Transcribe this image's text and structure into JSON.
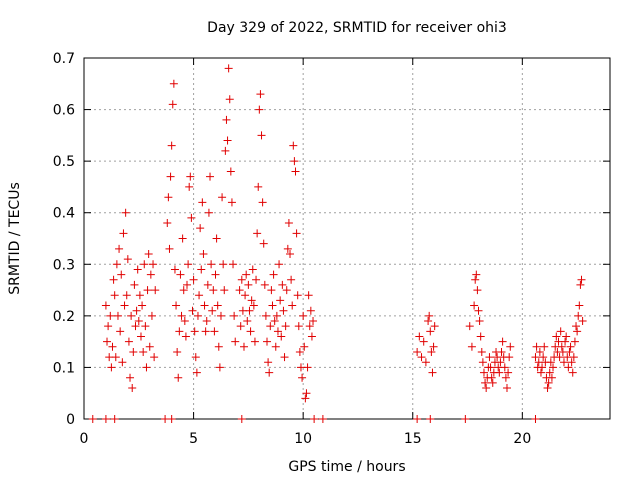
{
  "chart_data": {
    "type": "scatter",
    "title": "Day 329 of 2022, SRMTID for receiver ohi3",
    "xlabel": "GPS time / hours",
    "ylabel": "SRMTID / TECUs",
    "xlim": [
      0,
      24
    ],
    "ylim": [
      0,
      0.7
    ],
    "xticks": [
      0,
      5,
      10,
      15,
      20
    ],
    "xtick_labels": [
      "0",
      "5",
      "10",
      "15",
      "20"
    ],
    "yticks": [
      0,
      0.1,
      0.2,
      0.3,
      0.4,
      0.5,
      0.6,
      0.7
    ],
    "ytick_labels": [
      "0",
      "0.1",
      "0.2",
      "0.3",
      "0.4",
      "0.5",
      "0.6",
      "0.7"
    ],
    "grid": true,
    "marker": "plus",
    "color": "#e00000",
    "series": [
      {
        "name": "SRMTID",
        "points": [
          [
            0.4,
            0.0
          ],
          [
            1.0,
            0.0
          ],
          [
            1.4,
            0.0
          ],
          [
            3.7,
            0.0
          ],
          [
            4.0,
            0.0
          ],
          [
            7.2,
            0.0
          ],
          [
            10.5,
            0.0
          ],
          [
            10.9,
            0.0
          ],
          [
            15.2,
            0.0
          ],
          [
            15.8,
            0.0
          ],
          [
            17.4,
            0.0
          ],
          [
            20.6,
            0.0
          ],
          [
            1.0,
            0.22
          ],
          [
            1.05,
            0.15
          ],
          [
            1.1,
            0.18
          ],
          [
            1.15,
            0.12
          ],
          [
            1.2,
            0.2
          ],
          [
            1.25,
            0.1
          ],
          [
            1.3,
            0.14
          ],
          [
            1.35,
            0.27
          ],
          [
            1.4,
            0.24
          ],
          [
            1.45,
            0.12
          ],
          [
            1.5,
            0.3
          ],
          [
            1.55,
            0.2
          ],
          [
            1.6,
            0.33
          ],
          [
            1.65,
            0.17
          ],
          [
            1.7,
            0.28
          ],
          [
            1.75,
            0.11
          ],
          [
            1.8,
            0.36
          ],
          [
            1.85,
            0.22
          ],
          [
            1.9,
            0.4
          ],
          [
            1.95,
            0.24
          ],
          [
            2.0,
            0.31
          ],
          [
            2.05,
            0.15
          ],
          [
            2.1,
            0.08
          ],
          [
            2.15,
            0.2
          ],
          [
            2.2,
            0.06
          ],
          [
            2.25,
            0.13
          ],
          [
            2.3,
            0.26
          ],
          [
            2.35,
            0.18
          ],
          [
            2.4,
            0.21
          ],
          [
            2.45,
            0.29
          ],
          [
            2.5,
            0.19
          ],
          [
            2.55,
            0.24
          ],
          [
            2.6,
            0.16
          ],
          [
            2.65,
            0.22
          ],
          [
            2.7,
            0.13
          ],
          [
            2.75,
            0.3
          ],
          [
            2.8,
            0.18
          ],
          [
            2.85,
            0.1
          ],
          [
            2.9,
            0.25
          ],
          [
            2.95,
            0.32
          ],
          [
            3.0,
            0.14
          ],
          [
            3.05,
            0.28
          ],
          [
            3.1,
            0.2
          ],
          [
            3.15,
            0.3
          ],
          [
            3.2,
            0.12
          ],
          [
            3.25,
            0.25
          ],
          [
            3.8,
            0.38
          ],
          [
            3.85,
            0.43
          ],
          [
            3.9,
            0.33
          ],
          [
            3.95,
            0.47
          ],
          [
            4.0,
            0.53
          ],
          [
            4.05,
            0.61
          ],
          [
            4.1,
            0.65
          ],
          [
            4.15,
            0.29
          ],
          [
            4.2,
            0.22
          ],
          [
            4.25,
            0.13
          ],
          [
            4.3,
            0.08
          ],
          [
            4.35,
            0.17
          ],
          [
            4.4,
            0.28
          ],
          [
            4.45,
            0.2
          ],
          [
            4.5,
            0.35
          ],
          [
            4.55,
            0.25
          ],
          [
            4.6,
            0.19
          ],
          [
            4.65,
            0.16
          ],
          [
            4.7,
            0.26
          ],
          [
            4.75,
            0.3
          ],
          [
            4.8,
            0.45
          ],
          [
            4.85,
            0.47
          ],
          [
            4.9,
            0.39
          ],
          [
            4.95,
            0.21
          ],
          [
            5.0,
            0.27
          ],
          [
            5.05,
            0.17
          ],
          [
            5.1,
            0.12
          ],
          [
            5.15,
            0.09
          ],
          [
            5.2,
            0.2
          ],
          [
            5.25,
            0.24
          ],
          [
            5.3,
            0.37
          ],
          [
            5.35,
            0.29
          ],
          [
            5.4,
            0.42
          ],
          [
            5.45,
            0.32
          ],
          [
            5.5,
            0.22
          ],
          [
            5.55,
            0.17
          ],
          [
            5.6,
            0.19
          ],
          [
            5.65,
            0.26
          ],
          [
            5.7,
            0.4
          ],
          [
            5.75,
            0.47
          ],
          [
            5.8,
            0.3
          ],
          [
            5.85,
            0.21
          ],
          [
            5.9,
            0.25
          ],
          [
            5.95,
            0.17
          ],
          [
            6.0,
            0.28
          ],
          [
            6.05,
            0.35
          ],
          [
            6.1,
            0.22
          ],
          [
            6.15,
            0.14
          ],
          [
            6.2,
            0.1
          ],
          [
            6.25,
            0.2
          ],
          [
            6.3,
            0.43
          ],
          [
            6.35,
            0.3
          ],
          [
            6.4,
            0.25
          ],
          [
            6.45,
            0.52
          ],
          [
            6.5,
            0.58
          ],
          [
            6.55,
            0.54
          ],
          [
            6.6,
            0.68
          ],
          [
            6.65,
            0.62
          ],
          [
            6.7,
            0.48
          ],
          [
            6.75,
            0.42
          ],
          [
            6.8,
            0.3
          ],
          [
            6.85,
            0.2
          ],
          [
            6.9,
            0.15
          ],
          [
            7.1,
            0.25
          ],
          [
            7.15,
            0.18
          ],
          [
            7.2,
            0.27
          ],
          [
            7.25,
            0.21
          ],
          [
            7.3,
            0.14
          ],
          [
            7.35,
            0.24
          ],
          [
            7.4,
            0.28
          ],
          [
            7.45,
            0.19
          ],
          [
            7.5,
            0.26
          ],
          [
            7.55,
            0.21
          ],
          [
            7.6,
            0.17
          ],
          [
            7.65,
            0.23
          ],
          [
            7.7,
            0.29
          ],
          [
            7.75,
            0.22
          ],
          [
            7.8,
            0.15
          ],
          [
            7.85,
            0.27
          ],
          [
            7.9,
            0.36
          ],
          [
            7.95,
            0.45
          ],
          [
            8.0,
            0.6
          ],
          [
            8.05,
            0.63
          ],
          [
            8.1,
            0.55
          ],
          [
            8.15,
            0.42
          ],
          [
            8.2,
            0.34
          ],
          [
            8.25,
            0.26
          ],
          [
            8.3,
            0.2
          ],
          [
            8.35,
            0.15
          ],
          [
            8.4,
            0.11
          ],
          [
            8.45,
            0.09
          ],
          [
            8.5,
            0.18
          ],
          [
            8.55,
            0.25
          ],
          [
            8.6,
            0.22
          ],
          [
            8.65,
            0.28
          ],
          [
            8.7,
            0.19
          ],
          [
            8.75,
            0.14
          ],
          [
            8.8,
            0.2
          ],
          [
            8.85,
            0.17
          ],
          [
            8.9,
            0.3
          ],
          [
            8.95,
            0.23
          ],
          [
            9.0,
            0.16
          ],
          [
            9.05,
            0.26
          ],
          [
            9.1,
            0.21
          ],
          [
            9.15,
            0.12
          ],
          [
            9.2,
            0.18
          ],
          [
            9.25,
            0.25
          ],
          [
            9.3,
            0.33
          ],
          [
            9.35,
            0.38
          ],
          [
            9.4,
            0.32
          ],
          [
            9.45,
            0.27
          ],
          [
            9.5,
            0.22
          ],
          [
            9.55,
            0.53
          ],
          [
            9.6,
            0.5
          ],
          [
            9.65,
            0.48
          ],
          [
            9.7,
            0.36
          ],
          [
            9.75,
            0.24
          ],
          [
            9.8,
            0.18
          ],
          [
            9.85,
            0.13
          ],
          [
            9.9,
            0.1
          ],
          [
            9.95,
            0.08
          ],
          [
            10.0,
            0.2
          ],
          [
            10.05,
            0.14
          ],
          [
            10.1,
            0.04
          ],
          [
            10.15,
            0.05
          ],
          [
            10.2,
            0.1
          ],
          [
            10.25,
            0.24
          ],
          [
            10.3,
            0.18
          ],
          [
            10.35,
            0.21
          ],
          [
            10.4,
            0.16
          ],
          [
            10.45,
            0.19
          ],
          [
            15.2,
            0.13
          ],
          [
            15.3,
            0.16
          ],
          [
            15.4,
            0.12
          ],
          [
            15.5,
            0.15
          ],
          [
            15.6,
            0.11
          ],
          [
            15.7,
            0.19
          ],
          [
            15.75,
            0.2
          ],
          [
            15.8,
            0.17
          ],
          [
            15.85,
            0.13
          ],
          [
            15.9,
            0.09
          ],
          [
            15.95,
            0.14
          ],
          [
            16.0,
            0.18
          ],
          [
            17.6,
            0.18
          ],
          [
            17.7,
            0.14
          ],
          [
            17.8,
            0.22
          ],
          [
            17.85,
            0.27
          ],
          [
            17.9,
            0.28
          ],
          [
            17.95,
            0.25
          ],
          [
            18.0,
            0.21
          ],
          [
            18.05,
            0.19
          ],
          [
            18.1,
            0.16
          ],
          [
            18.15,
            0.13
          ],
          [
            18.2,
            0.11
          ],
          [
            18.25,
            0.09
          ],
          [
            18.3,
            0.07
          ],
          [
            18.35,
            0.06
          ],
          [
            18.4,
            0.08
          ],
          [
            18.45,
            0.1
          ],
          [
            18.5,
            0.12
          ],
          [
            18.55,
            0.1
          ],
          [
            18.6,
            0.08
          ],
          [
            18.65,
            0.07
          ],
          [
            18.7,
            0.09
          ],
          [
            18.75,
            0.11
          ],
          [
            18.8,
            0.13
          ],
          [
            18.85,
            0.12
          ],
          [
            18.9,
            0.1
          ],
          [
            18.95,
            0.09
          ],
          [
            19.0,
            0.11
          ],
          [
            19.05,
            0.13
          ],
          [
            19.1,
            0.15
          ],
          [
            19.15,
            0.12
          ],
          [
            19.2,
            0.1
          ],
          [
            19.25,
            0.08
          ],
          [
            19.3,
            0.06
          ],
          [
            19.35,
            0.09
          ],
          [
            19.4,
            0.12
          ],
          [
            19.45,
            0.14
          ],
          [
            20.6,
            0.12
          ],
          [
            20.65,
            0.14
          ],
          [
            20.7,
            0.1
          ],
          [
            20.75,
            0.11
          ],
          [
            20.8,
            0.13
          ],
          [
            20.85,
            0.09
          ],
          [
            20.9,
            0.1
          ],
          [
            20.95,
            0.12
          ],
          [
            21.0,
            0.14
          ],
          [
            21.05,
            0.11
          ],
          [
            21.1,
            0.08
          ],
          [
            21.15,
            0.06
          ],
          [
            21.2,
            0.07
          ],
          [
            21.25,
            0.09
          ],
          [
            21.3,
            0.11
          ],
          [
            21.35,
            0.08
          ],
          [
            21.4,
            0.1
          ],
          [
            21.45,
            0.12
          ],
          [
            21.5,
            0.14
          ],
          [
            21.55,
            0.16
          ],
          [
            21.6,
            0.13
          ],
          [
            21.65,
            0.15
          ],
          [
            21.7,
            0.12
          ],
          [
            21.75,
            0.17
          ],
          [
            21.8,
            0.14
          ],
          [
            21.85,
            0.13
          ],
          [
            21.9,
            0.11
          ],
          [
            21.95,
            0.15
          ],
          [
            22.0,
            0.16
          ],
          [
            22.05,
            0.12
          ],
          [
            22.1,
            0.1
          ],
          [
            22.15,
            0.13
          ],
          [
            22.2,
            0.14
          ],
          [
            22.25,
            0.11
          ],
          [
            22.3,
            0.09
          ],
          [
            22.35,
            0.12
          ],
          [
            22.4,
            0.15
          ],
          [
            22.45,
            0.18
          ],
          [
            22.5,
            0.17
          ],
          [
            22.55,
            0.2
          ],
          [
            22.6,
            0.22
          ],
          [
            22.65,
            0.26
          ],
          [
            22.7,
            0.27
          ],
          [
            22.75,
            0.19
          ]
        ]
      }
    ]
  }
}
